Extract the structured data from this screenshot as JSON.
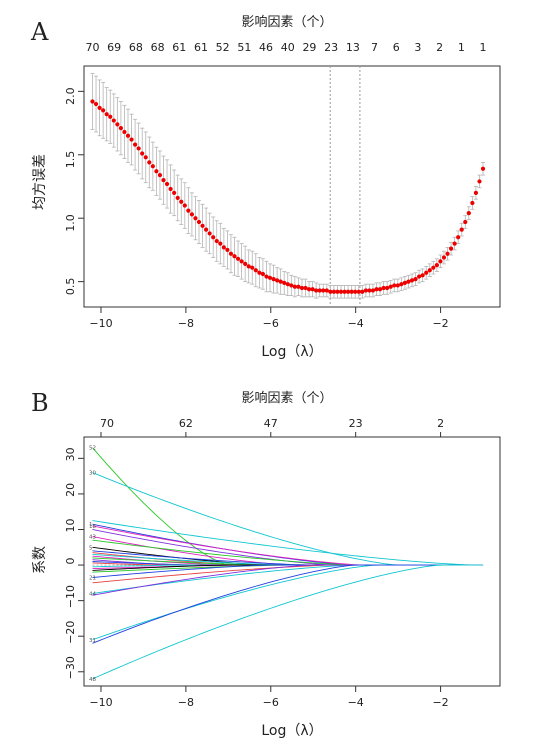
{
  "figure": {
    "panels": [
      "A",
      "B"
    ]
  },
  "chart_data": [
    {
      "panel_label": "A",
      "type": "scatter",
      "xlabel": "Log（λ）",
      "ylabel": "均方误差",
      "top_axis_title": "影响因素（个）",
      "xlim": [
        -10.4,
        -0.6
      ],
      "ylim": [
        0.3,
        2.2
      ],
      "x_ticks": [
        -10,
        -8,
        -6,
        -4,
        -2
      ],
      "y_ticks": [
        0.5,
        1.0,
        1.5,
        2.0
      ],
      "y_tick_labels": [
        "0.5",
        "1.0",
        "1.5",
        "2.0"
      ],
      "top_tick_labels": [
        "70",
        "69",
        "68",
        "68",
        "61",
        "61",
        "52",
        "51",
        "46",
        "40",
        "29",
        "23",
        "13",
        "7",
        "6",
        "3",
        "2",
        "1",
        "1"
      ],
      "vlines": [
        -4.6,
        -3.9
      ],
      "log_lambda_start": -10.2,
      "log_lambda_end": -1.0,
      "cvm": [
        1.92,
        1.9,
        1.87,
        1.85,
        1.82,
        1.8,
        1.77,
        1.74,
        1.71,
        1.68,
        1.65,
        1.62,
        1.58,
        1.55,
        1.51,
        1.48,
        1.44,
        1.41,
        1.37,
        1.34,
        1.3,
        1.27,
        1.23,
        1.2,
        1.16,
        1.13,
        1.1,
        1.06,
        1.03,
        1.0,
        0.97,
        0.94,
        0.91,
        0.88,
        0.85,
        0.82,
        0.8,
        0.77,
        0.75,
        0.72,
        0.7,
        0.68,
        0.66,
        0.64,
        0.62,
        0.61,
        0.59,
        0.57,
        0.56,
        0.54,
        0.53,
        0.52,
        0.51,
        0.5,
        0.49,
        0.48,
        0.47,
        0.46,
        0.46,
        0.45,
        0.45,
        0.44,
        0.44,
        0.43,
        0.43,
        0.43,
        0.43,
        0.42,
        0.42,
        0.42,
        0.42,
        0.42,
        0.42,
        0.42,
        0.42,
        0.42,
        0.42,
        0.43,
        0.43,
        0.43,
        0.44,
        0.44,
        0.45,
        0.45,
        0.46,
        0.47,
        0.47,
        0.48,
        0.49,
        0.5,
        0.51,
        0.52,
        0.54,
        0.55,
        0.57,
        0.59,
        0.61,
        0.63,
        0.66,
        0.69,
        0.72,
        0.76,
        0.8,
        0.85,
        0.91,
        0.97,
        1.04,
        1.12,
        1.2,
        1.29,
        1.39
      ],
      "sd": [
        0.22,
        0.22,
        0.22,
        0.22,
        0.21,
        0.21,
        0.21,
        0.21,
        0.21,
        0.21,
        0.21,
        0.2,
        0.2,
        0.2,
        0.2,
        0.2,
        0.2,
        0.19,
        0.19,
        0.19,
        0.19,
        0.19,
        0.19,
        0.18,
        0.18,
        0.18,
        0.18,
        0.18,
        0.17,
        0.17,
        0.17,
        0.17,
        0.17,
        0.16,
        0.16,
        0.16,
        0.16,
        0.15,
        0.15,
        0.15,
        0.15,
        0.14,
        0.14,
        0.14,
        0.13,
        0.13,
        0.13,
        0.12,
        0.12,
        0.12,
        0.11,
        0.11,
        0.1,
        0.1,
        0.09,
        0.09,
        0.08,
        0.08,
        0.07,
        0.07,
        0.07,
        0.06,
        0.06,
        0.06,
        0.05,
        0.05,
        0.05,
        0.05,
        0.05,
        0.05,
        0.05,
        0.05,
        0.05,
        0.05,
        0.05,
        0.05,
        0.05,
        0.05,
        0.05,
        0.05,
        0.05,
        0.05,
        0.05,
        0.05,
        0.05,
        0.05,
        0.05,
        0.05,
        0.05,
        0.05,
        0.05,
        0.05,
        0.05,
        0.05,
        0.05,
        0.05,
        0.05,
        0.05,
        0.05,
        0.05,
        0.05,
        0.05,
        0.05,
        0.05,
        0.05,
        0.05,
        0.05,
        0.05,
        0.05,
        0.05,
        0.05
      ],
      "point_color": "#ee0000",
      "errorbar_color": "#b3b3b3"
    },
    {
      "panel_label": "B",
      "type": "line",
      "xlabel": "Log（λ）",
      "ylabel": "系数",
      "top_axis_title": "影响因素（个）",
      "xlim": [
        -10.4,
        -0.6
      ],
      "ylim": [
        -34,
        36
      ],
      "x_ticks": [
        -10,
        -8,
        -6,
        -4,
        -2
      ],
      "y_ticks": [
        -30,
        -20,
        -10,
        0,
        10,
        20,
        30
      ],
      "top_ticks": [
        -10,
        -8,
        -6,
        -4,
        -2
      ],
      "top_tick_labels": [
        "70",
        "62",
        "47",
        "23",
        "2"
      ],
      "coef_start_x": -10.2,
      "coef_end_x": -1.0,
      "series": [
        {
          "label": "52",
          "start": 33,
          "zero_at": -7.0,
          "color": "#28c828"
        },
        {
          "label": "30",
          "start": 26,
          "zero_at": -3.0,
          "color": "#11c6d0"
        },
        {
          "label": "",
          "start": 12.5,
          "zero_at": -1.2,
          "color": "#11c6d0"
        },
        {
          "label": "1",
          "start": 11.5,
          "zero_at": -4.0,
          "color": "#2040e0"
        },
        {
          "label": "18",
          "start": 11,
          "zero_at": -3.8,
          "color": "#e020c0"
        },
        {
          "label": "",
          "start": 10,
          "zero_at": -4.5,
          "color": "#8030e0"
        },
        {
          "label": "43",
          "start": 8,
          "zero_at": -5.5,
          "color": "#e020c0"
        },
        {
          "label": "",
          "start": 7,
          "zero_at": -4.0,
          "color": "#28c828"
        },
        {
          "label": "5",
          "start": 5,
          "zero_at": -6.0,
          "color": "#000000"
        },
        {
          "label": "",
          "start": 4,
          "zero_at": -5.0,
          "color": "#2040e0"
        },
        {
          "label": "",
          "start": 3.5,
          "zero_at": -6.5,
          "color": "#e84040"
        },
        {
          "label": "",
          "start": 3,
          "zero_at": -5.5,
          "color": "#11c6d0"
        },
        {
          "label": "",
          "start": 2.5,
          "zero_at": -7.0,
          "color": "#e020c0"
        },
        {
          "label": "",
          "start": 2,
          "zero_at": -6.0,
          "color": "#28c828"
        },
        {
          "label": "",
          "start": 1.5,
          "zero_at": -8.0,
          "color": "#8030e0"
        },
        {
          "label": "",
          "start": 1,
          "zero_at": -7.5,
          "color": "#2040e0"
        },
        {
          "label": "",
          "start": 0.6,
          "zero_at": -8.5,
          "color": "#e84040"
        },
        {
          "label": "",
          "start": -0.5,
          "zero_at": -8.0,
          "color": "#11c6d0"
        },
        {
          "label": "",
          "start": -1,
          "zero_at": -6.5,
          "color": "#e020c0"
        },
        {
          "label": "",
          "start": -1.5,
          "zero_at": -7.0,
          "color": "#000000"
        },
        {
          "label": "",
          "start": -2,
          "zero_at": -5.5,
          "color": "#28c828"
        },
        {
          "label": "21",
          "start": -3.5,
          "zero_at": -6.0,
          "color": "#2040e0"
        },
        {
          "label": "",
          "start": -5,
          "zero_at": -4.5,
          "color": "#e84040"
        },
        {
          "label": "44",
          "start": -8,
          "zero_at": -4.0,
          "color": "#11c6d0"
        },
        {
          "label": "",
          "start": -8.5,
          "zero_at": -5.0,
          "color": "#8030e0"
        },
        {
          "label": "31",
          "start": -21,
          "zero_at": -3.5,
          "color": "#11c6d0"
        },
        {
          "label": "",
          "start": -22,
          "zero_at": -4.0,
          "color": "#2040e0"
        },
        {
          "label": "48",
          "start": -32,
          "zero_at": -2.0,
          "color": "#11c6d0"
        }
      ]
    }
  ]
}
